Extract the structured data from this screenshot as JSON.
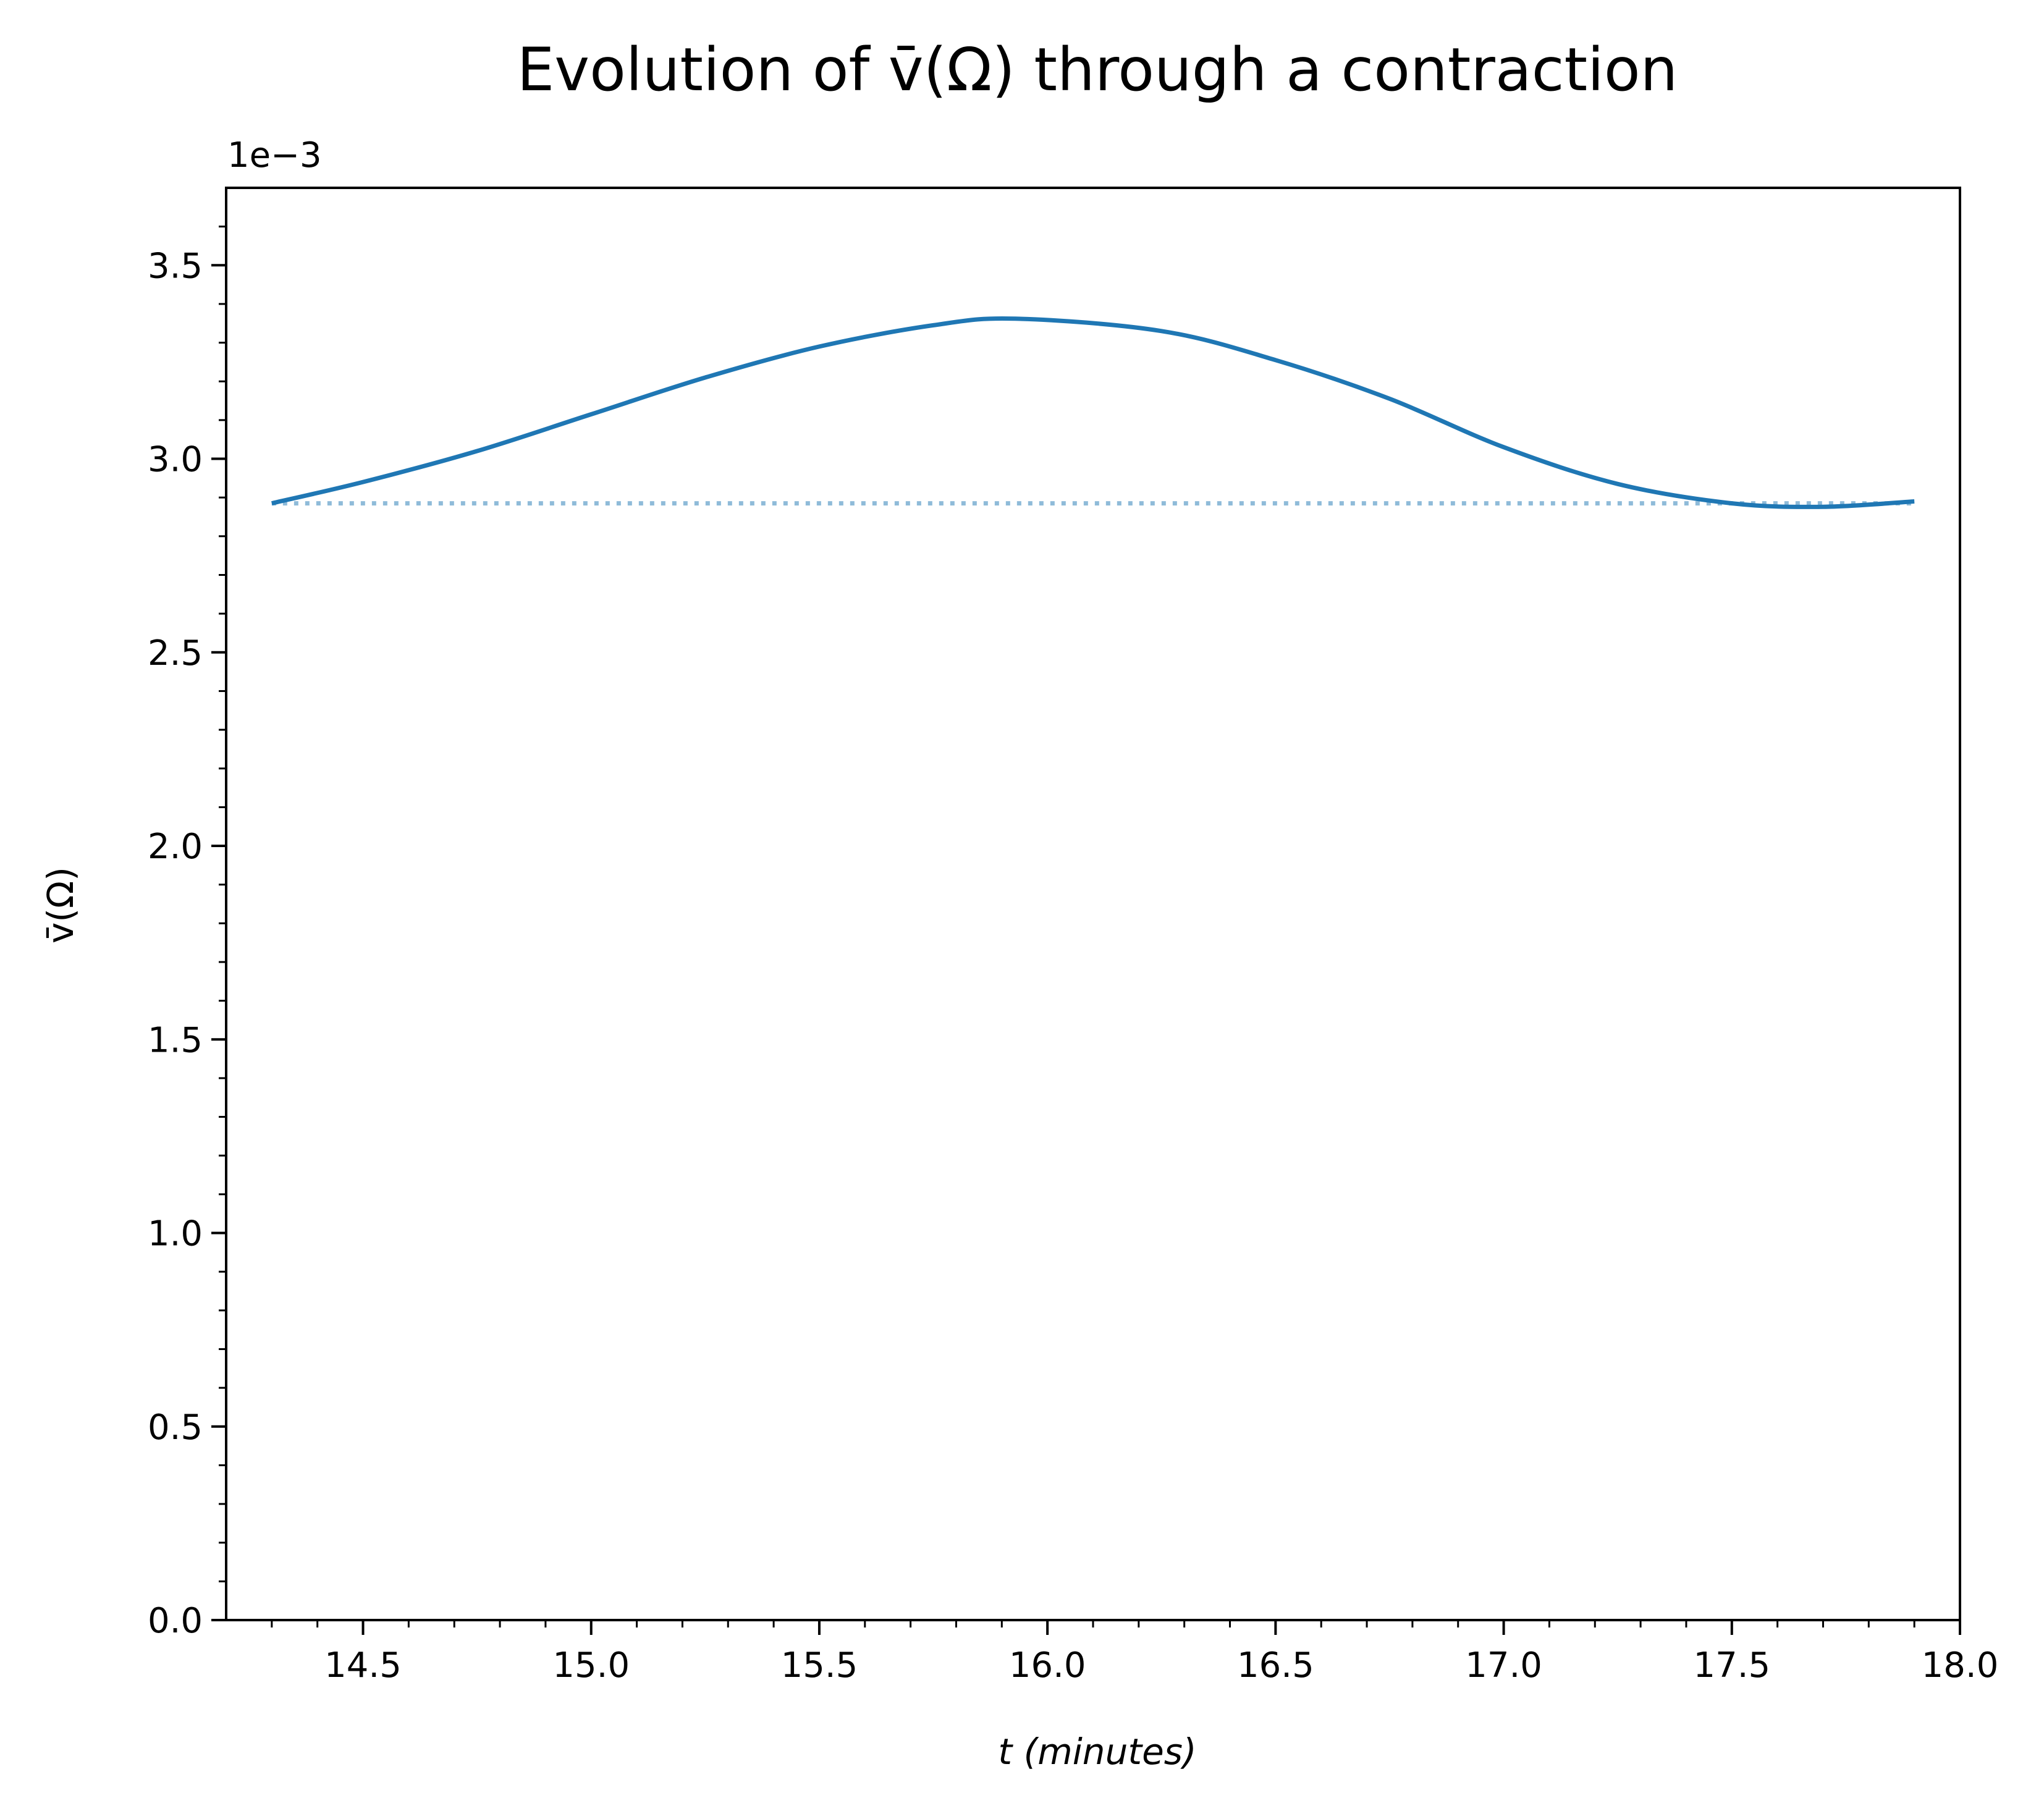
{
  "chart_data": {
    "type": "line",
    "title": "Evolution of v̄(Ω) through a contraction",
    "xlabel": "t (minutes)",
    "ylabel": "v̄(Ω)",
    "y_scale_label": "1e−3",
    "y_scale": 0.001,
    "xlim": [
      14.2,
      18.0
    ],
    "ylim": [
      0.0,
      3.7
    ],
    "x_ticks": [
      14.5,
      15.0,
      15.5,
      16.0,
      16.5,
      17.0,
      17.5,
      18.0
    ],
    "x_tick_labels": [
      "14.5",
      "15.0",
      "15.5",
      "16.0",
      "16.5",
      "17.0",
      "17.5",
      "18.0"
    ],
    "y_ticks": [
      0.0,
      0.5,
      1.0,
      1.5,
      2.0,
      2.5,
      3.0,
      3.5
    ],
    "y_tick_labels": [
      "0.0",
      "0.5",
      "1.0",
      "1.5",
      "2.0",
      "2.5",
      "3.0",
      "3.5"
    ],
    "grid": false,
    "series": [
      {
        "name": "v̄(Ω)",
        "style": "solid",
        "color": "#1f77b4",
        "x": [
          14.3,
          14.5,
          14.75,
          15.0,
          15.25,
          15.5,
          15.75,
          15.93,
          16.25,
          16.5,
          16.75,
          17.0,
          17.25,
          17.5,
          17.7,
          17.9
        ],
        "values": [
          2.885,
          2.94,
          3.02,
          3.115,
          3.21,
          3.29,
          3.345,
          3.362,
          3.33,
          3.255,
          3.155,
          3.03,
          2.935,
          2.885,
          2.876,
          2.89
        ]
      },
      {
        "name": "reference",
        "style": "dotted",
        "color": "#8fbbd9",
        "x": [
          14.3,
          17.9
        ],
        "values": [
          2.885,
          2.885
        ]
      }
    ]
  }
}
